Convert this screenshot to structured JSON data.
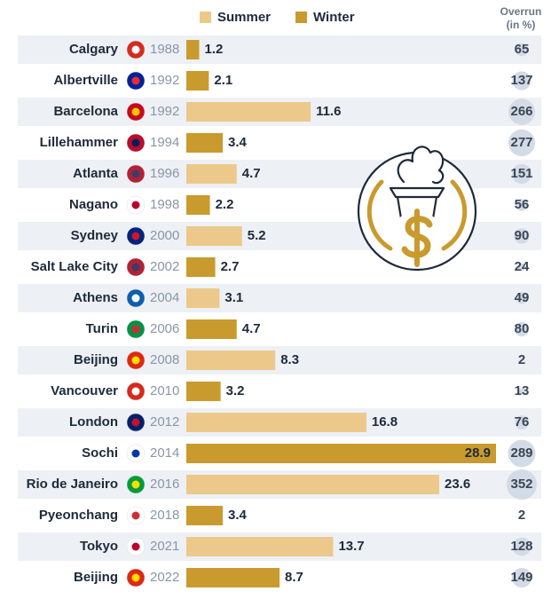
{
  "chart_data": {
    "type": "bar",
    "orientation": "horizontal",
    "categories": [
      "Calgary",
      "Albertville",
      "Barcelona",
      "Lillehammer",
      "Atlanta",
      "Nagano",
      "Sydney",
      "Salt Lake City",
      "Athens",
      "Turin",
      "Beijing",
      "Vancouver",
      "London",
      "Sochi",
      "Rio de Janeiro",
      "Pyeonchang",
      "Tokyo",
      "Beijing"
    ],
    "years": [
      "1988",
      "1992",
      "1992",
      "1994",
      "1996",
      "1998",
      "2000",
      "2002",
      "2004",
      "2006",
      "2008",
      "2010",
      "2012",
      "2014",
      "2016",
      "2018",
      "2021",
      "2022"
    ],
    "series": [
      {
        "name": "Summer",
        "color": "#ecc98a",
        "values": [
          null,
          null,
          11.6,
          null,
          4.7,
          null,
          5.2,
          null,
          3.1,
          null,
          8.3,
          null,
          16.8,
          null,
          23.6,
          null,
          13.7,
          null
        ]
      },
      {
        "name": "Winter",
        "color": "#c99a2e",
        "values": [
          1.2,
          2.1,
          null,
          3.4,
          null,
          2.2,
          null,
          2.7,
          null,
          4.7,
          null,
          3.2,
          null,
          28.9,
          null,
          3.4,
          null,
          8.7
        ]
      }
    ],
    "overrun_title": [
      "Overrun",
      "(in %)"
    ],
    "overrun": [
      65,
      137,
      266,
      277,
      151,
      56,
      90,
      24,
      49,
      80,
      2,
      13,
      76,
      289,
      352,
      2,
      128,
      149
    ],
    "overrun_color": "#d3dbe6"
  }
}
